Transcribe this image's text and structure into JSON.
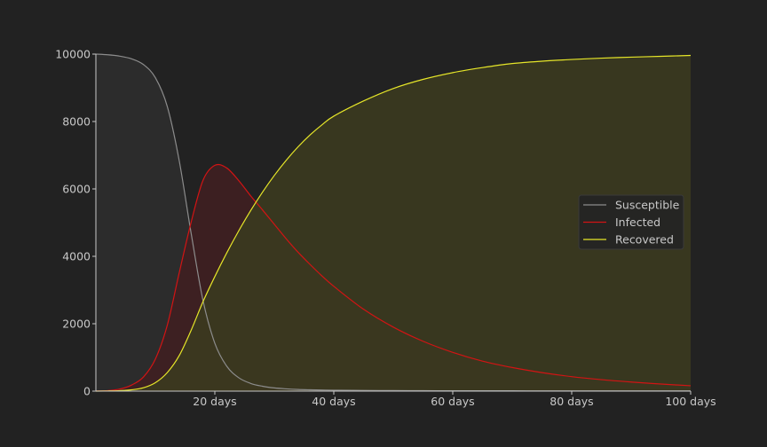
{
  "chart_data": {
    "type": "area",
    "x_unit_label": "days",
    "xlim": [
      0,
      100
    ],
    "ylim": [
      0,
      10000
    ],
    "x_ticks": [
      20,
      40,
      60,
      80,
      100
    ],
    "x_tick_labels": [
      "20 days",
      "40 days",
      "60 days",
      "80 days",
      "100 days"
    ],
    "y_ticks": [
      0,
      2000,
      4000,
      6000,
      8000,
      10000
    ],
    "y_tick_labels": [
      "0",
      "2000",
      "4000",
      "6000",
      "8000",
      "10000"
    ],
    "grid": false,
    "legend_position": "right",
    "title": "",
    "xlabel": "",
    "ylabel": "",
    "x": [
      0,
      2,
      4,
      6,
      8,
      10,
      12,
      14,
      16,
      18,
      20,
      22,
      24,
      26,
      28,
      30,
      32,
      34,
      36,
      38,
      40,
      45,
      50,
      55,
      60,
      65,
      70,
      75,
      80,
      85,
      90,
      95,
      100
    ],
    "series": [
      {
        "name": "Susceptible",
        "color": "#8c8c8c",
        "fill": "#2e2e2e",
        "values": [
          10000,
          9980,
          9940,
          9860,
          9690,
          9300,
          8450,
          6850,
          4700,
          2700,
          1420,
          740,
          400,
          230,
          145,
          95,
          68,
          50,
          40,
          33,
          28,
          20,
          16,
          13,
          11,
          10,
          9,
          8,
          8,
          7,
          7,
          7,
          6
        ]
      },
      {
        "name": "Infected",
        "color": "#d21414",
        "fill": "#3f1f22",
        "values": [
          3,
          15,
          60,
          180,
          420,
          950,
          1950,
          3500,
          5000,
          6250,
          6700,
          6620,
          6250,
          5800,
          5380,
          4950,
          4520,
          4120,
          3760,
          3420,
          3110,
          2430,
          1900,
          1480,
          1150,
          890,
          700,
          550,
          430,
          340,
          270,
          210,
          160
        ]
      },
      {
        "name": "Recovered",
        "color": "#e6e629",
        "fill": "#3b3a1f",
        "values": [
          0,
          5,
          15,
          40,
          100,
          250,
          550,
          1050,
          1800,
          2650,
          3400,
          4100,
          4750,
          5350,
          5900,
          6400,
          6850,
          7250,
          7600,
          7900,
          8160,
          8610,
          8980,
          9250,
          9450,
          9600,
          9720,
          9790,
          9840,
          9880,
          9910,
          9935,
          9960
        ]
      }
    ]
  }
}
